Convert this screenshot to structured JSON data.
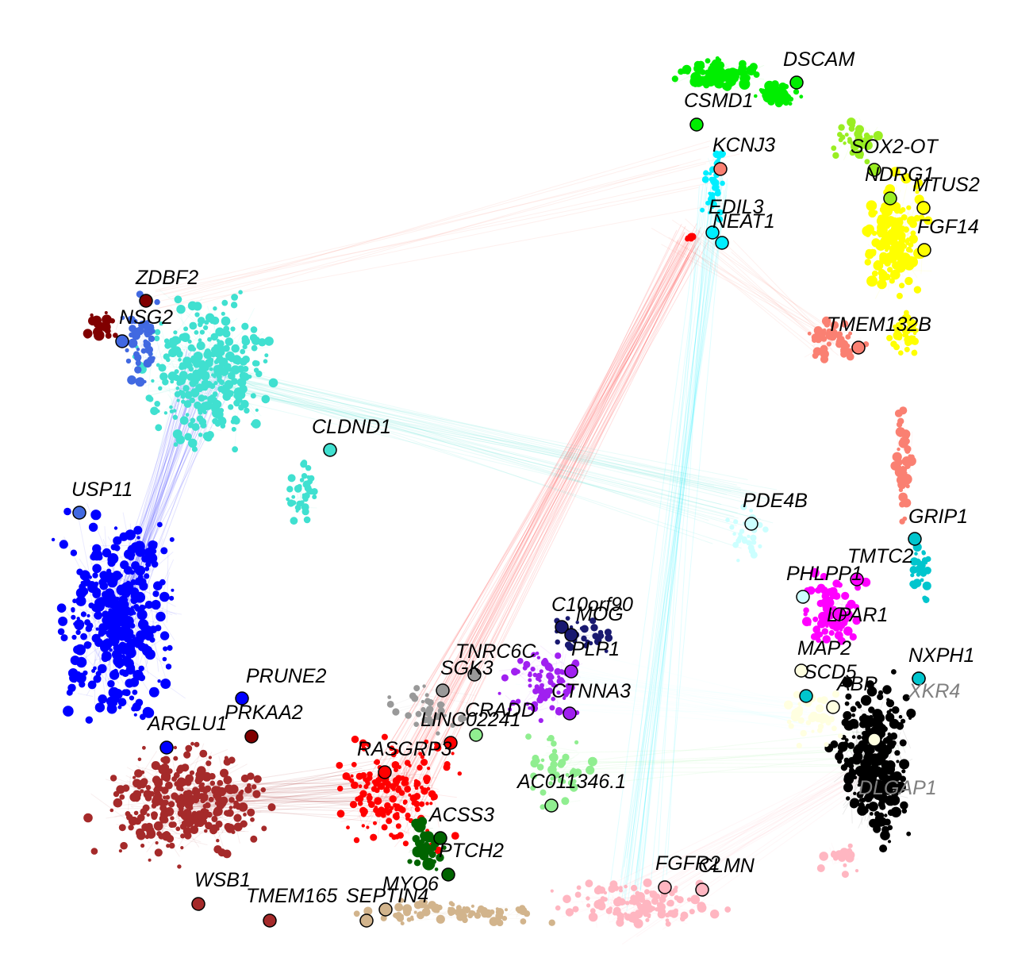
{
  "palette": {
    "green": "#00ee00",
    "chartreuse": "#99ee22",
    "yellow": "#ffff00",
    "salmon": "#fa8072",
    "cyan": "#00eeff",
    "red": "#ff0000",
    "turquoise": "#40e0d0",
    "royalblue": "#4169e1",
    "blue": "#0000ff",
    "brown": "#a52a2a",
    "maroon": "#800000",
    "pink": "#ffb6c1",
    "tan": "#d2b48c",
    "darkgreen": "#006400",
    "lightgreen": "#90ee90",
    "purple": "#a020f0",
    "midnightblue": "#191970",
    "magenta": "#ff00ff",
    "darkturquoise": "#00c5cd",
    "black": "#000000",
    "grey": "#999999",
    "lightcyan": "#ccffff",
    "lightyellow": "#ffffe0",
    "grey60": "#888888"
  },
  "labels": [
    {
      "text": "DSCAM",
      "color": "#000000"
    },
    {
      "text": "CSMD1",
      "color": "#000000"
    },
    {
      "text": "KCNJ3",
      "color": "#000000"
    },
    {
      "text": "SOX2-OT",
      "color": "#000000"
    },
    {
      "text": "NDRG1",
      "color": "#000000"
    },
    {
      "text": "MTUS2",
      "color": "#000000"
    },
    {
      "text": "EDIL3",
      "color": "#000000"
    },
    {
      "text": "NEAT1",
      "color": "#000000"
    },
    {
      "text": "FGF14",
      "color": "#000000"
    },
    {
      "text": "TMEM132B",
      "color": "#000000"
    },
    {
      "text": "ZDBF2",
      "color": "#000000"
    },
    {
      "text": "NSG2",
      "color": "#000000"
    },
    {
      "text": "CLDND1",
      "color": "#000000"
    },
    {
      "text": "USP11",
      "color": "#000000"
    },
    {
      "text": "PDE4B",
      "color": "#000000"
    },
    {
      "text": "GRIP1",
      "color": "#000000"
    },
    {
      "text": "TMTC2",
      "color": "#000000"
    },
    {
      "text": "PHLPP1",
      "color": "#000000"
    },
    {
      "text": "LPAR1",
      "color": "#000000"
    },
    {
      "text": "C10orf90",
      "color": "#000000"
    },
    {
      "text": "MOG",
      "color": "#000000"
    },
    {
      "text": "TNRC6C",
      "color": "#000000"
    },
    {
      "text": "PLP1",
      "color": "#000000"
    },
    {
      "text": "SGK3",
      "color": "#000000"
    },
    {
      "text": "CTNNA3",
      "color": "#000000"
    },
    {
      "text": "MAP2",
      "color": "#000000"
    },
    {
      "text": "SCD5",
      "color": "#000000"
    },
    {
      "text": "NXPH1",
      "color": "#000000"
    },
    {
      "text": "ABR",
      "color": "#000000"
    },
    {
      "text": "XKR4",
      "color": "#808080"
    },
    {
      "text": "PRUNE2",
      "color": "#000000"
    },
    {
      "text": "PRKAA2",
      "color": "#000000"
    },
    {
      "text": "ARGLU1",
      "color": "#000000"
    },
    {
      "text": "CRADD",
      "color": "#000000"
    },
    {
      "text": "LINC02241",
      "color": "#000000"
    },
    {
      "text": "RASGRP3",
      "color": "#000000"
    },
    {
      "text": "AC011346.1",
      "color": "#000000"
    },
    {
      "text": "DLGAP1",
      "color": "#808080"
    },
    {
      "text": "ACSS3",
      "color": "#000000"
    },
    {
      "text": "PTCH2",
      "color": "#000000"
    },
    {
      "text": "FGFR2",
      "color": "#000000"
    },
    {
      "text": "CLMN",
      "color": "#000000"
    },
    {
      "text": "WSB1",
      "color": "#000000"
    },
    {
      "text": "MYO6",
      "color": "#000000"
    },
    {
      "text": "TMEM165",
      "color": "#000000"
    },
    {
      "text": "SEPTIN4",
      "color": "#000000"
    }
  ]
}
